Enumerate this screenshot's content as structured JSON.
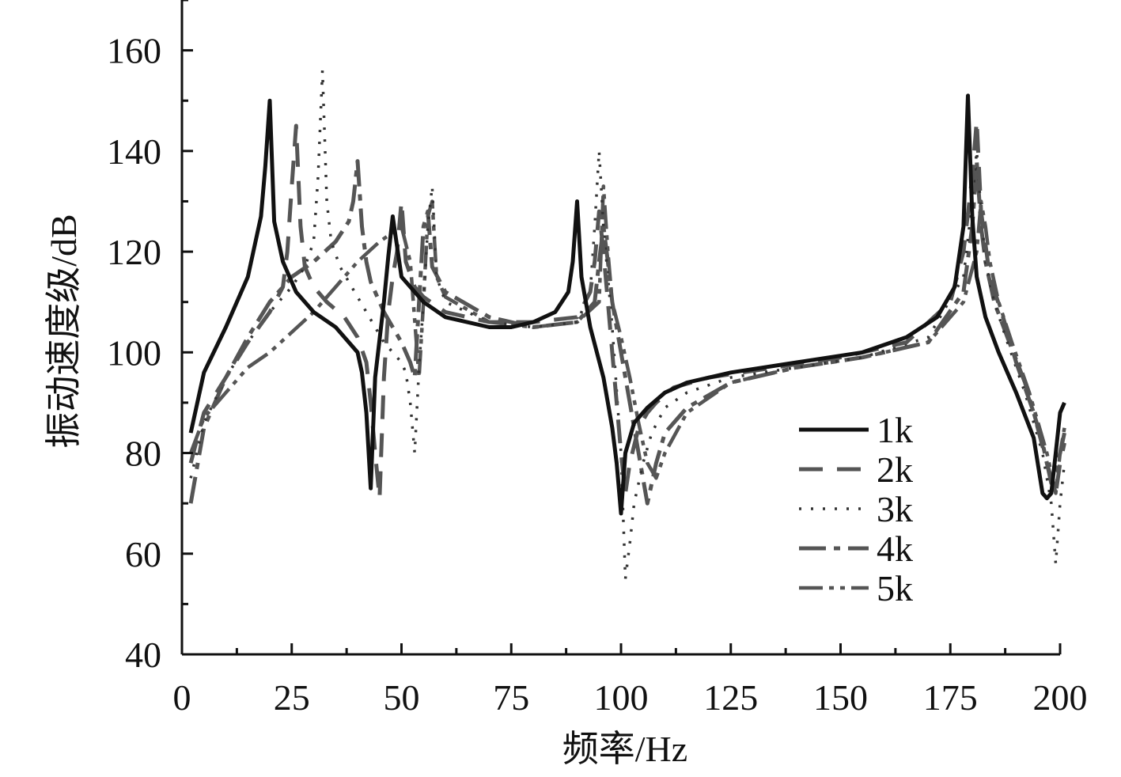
{
  "chart_data": {
    "type": "line",
    "title": "",
    "xlabel": "频率/Hz",
    "ylabel": "振动速度级/dB",
    "xlim": [
      0,
      200
    ],
    "ylim": [
      40,
      170
    ],
    "xticks": [
      0,
      25,
      50,
      75,
      100,
      125,
      150,
      175,
      200
    ],
    "yticks": [
      40,
      60,
      80,
      100,
      120,
      140,
      160
    ],
    "grid": false,
    "legend": {
      "position": "lower-right"
    },
    "series": [
      {
        "name": "1k",
        "color": "#111111",
        "dash": "solid",
        "x": [
          2,
          5,
          10,
          15,
          18,
          19,
          20,
          21,
          23,
          26,
          30,
          35,
          40,
          41,
          42,
          43,
          44,
          46,
          47,
          48,
          50,
          55,
          60,
          70,
          75,
          80,
          85,
          88,
          89,
          90,
          91,
          93,
          96,
          98,
          99,
          100,
          101,
          103,
          106,
          110,
          115,
          125,
          140,
          155,
          165,
          172,
          176,
          178,
          179,
          180,
          181,
          183,
          186,
          190,
          194,
          196,
          197,
          198,
          199,
          200,
          201
        ],
        "y": [
          84,
          96,
          105,
          115,
          127,
          137,
          150,
          126,
          118,
          112,
          108,
          105,
          100,
          96,
          88,
          73,
          95,
          110,
          119,
          127,
          115,
          110,
          107,
          105,
          105,
          106,
          108,
          112,
          118,
          130,
          115,
          105,
          95,
          85,
          78,
          68,
          80,
          86,
          89,
          92,
          94,
          96,
          98,
          100,
          103,
          107,
          113,
          125,
          151,
          127,
          115,
          107,
          100,
          92,
          83,
          72,
          71,
          72,
          80,
          88,
          90
        ]
      },
      {
        "name": "2k",
        "color": "#555555",
        "dash": "30 18",
        "x": [
          2,
          5,
          10,
          15,
          20,
          23,
          24,
          25,
          26,
          27,
          28,
          30,
          33,
          37,
          40,
          42,
          43,
          44,
          45,
          46,
          47,
          48,
          49,
          50,
          51,
          53,
          55,
          60,
          70,
          80,
          90,
          93,
          94,
          95,
          96,
          97,
          98,
          99,
          100,
          101,
          102,
          104,
          106,
          108,
          112,
          120,
          135,
          150,
          165,
          175,
          178,
          180,
          181,
          182,
          184,
          187,
          190,
          194,
          197,
          199,
          200,
          201
        ],
        "y": [
          78,
          88,
          95,
          102,
          108,
          113,
          120,
          133,
          145,
          125,
          117,
          113,
          110,
          107,
          103,
          98,
          90,
          80,
          71,
          95,
          108,
          115,
          120,
          130,
          118,
          113,
          111,
          108,
          106,
          106,
          107,
          112,
          118,
          128,
          120,
          110,
          100,
          90,
          80,
          72,
          78,
          85,
          88,
          90,
          93,
          95,
          97,
          99,
          102,
          110,
          120,
          135,
          146,
          128,
          115,
          107,
          98,
          88,
          78,
          72,
          78,
          82
        ]
      },
      {
        "name": "3k",
        "color": "#333333",
        "dash": "3 12",
        "x": [
          2,
          5,
          10,
          15,
          20,
          25,
          28,
          30,
          31,
          32,
          33,
          34,
          36,
          38,
          40,
          42,
          44,
          46,
          48,
          50,
          51,
          52,
          53,
          54,
          55,
          56,
          57,
          58,
          60,
          70,
          80,
          90,
          93,
          94,
          95,
          96,
          97,
          98,
          100,
          101,
          102,
          103,
          105,
          107,
          110,
          115,
          125,
          140,
          155,
          170,
          178,
          180,
          181,
          182,
          183,
          185,
          188,
          192,
          196,
          198,
          199,
          200,
          201
        ],
        "y": [
          75,
          86,
          95,
          102,
          108,
          113,
          117,
          122,
          135,
          156,
          130,
          122,
          117,
          114,
          111,
          108,
          105,
          102,
          100,
          98,
          96,
          90,
          80,
          97,
          110,
          125,
          133,
          115,
          110,
          106,
          105,
          106,
          112,
          125,
          140,
          125,
          115,
          105,
          80,
          55,
          62,
          70,
          78,
          84,
          89,
          92,
          95,
          97,
          99,
          103,
          115,
          130,
          140,
          128,
          118,
          110,
          102,
          92,
          80,
          70,
          58,
          70,
          78
        ]
      },
      {
        "name": "4k",
        "color": "#555555",
        "dash": "34 10 8 10",
        "x": [
          2,
          5,
          10,
          15,
          20,
          25,
          30,
          35,
          38,
          39,
          40,
          41,
          42,
          43,
          44,
          46,
          48,
          50,
          52,
          53,
          54,
          55,
          56,
          57,
          60,
          70,
          80,
          90,
          94,
          95,
          96,
          97,
          98,
          100,
          102,
          104,
          106,
          108,
          110,
          115,
          125,
          140,
          155,
          170,
          178,
          180,
          181,
          182,
          183,
          185,
          188,
          192,
          196,
          198,
          200,
          201
        ],
        "y": [
          70,
          85,
          95,
          103,
          110,
          115,
          118,
          122,
          126,
          130,
          138,
          125,
          118,
          114,
          112,
          108,
          105,
          102,
          98,
          95,
          110,
          125,
          128,
          117,
          112,
          107,
          105,
          106,
          110,
          118,
          125,
          118,
          110,
          100,
          90,
          80,
          70,
          78,
          84,
          89,
          94,
          97,
          99,
          102,
          112,
          125,
          138,
          125,
          118,
          110,
          103,
          94,
          82,
          74,
          80,
          84
        ]
      },
      {
        "name": "5k",
        "color": "#555555",
        "dash": "30 8 6 8 6 8",
        "x": [
          2,
          5,
          10,
          15,
          20,
          25,
          30,
          35,
          40,
          45,
          50,
          52,
          54,
          55,
          56,
          57,
          58,
          60,
          70,
          80,
          90,
          95,
          96,
          97,
          98,
          100,
          102,
          104,
          106,
          108,
          110,
          115,
          125,
          140,
          155,
          170,
          178,
          181,
          182,
          183,
          184,
          186,
          189,
          193,
          197,
          199,
          200,
          201
        ],
        "y": [
          80,
          87,
          92,
          97,
          100,
          104,
          108,
          113,
          118,
          122,
          125,
          118,
          95,
          110,
          127,
          130,
          115,
          111,
          106,
          105,
          106,
          110,
          133,
          120,
          110,
          103,
          95,
          86,
          78,
          75,
          80,
          88,
          94,
          97,
          99,
          102,
          110,
          120,
          130,
          125,
          118,
          110,
          102,
          92,
          80,
          72,
          80,
          85
        ]
      }
    ]
  }
}
